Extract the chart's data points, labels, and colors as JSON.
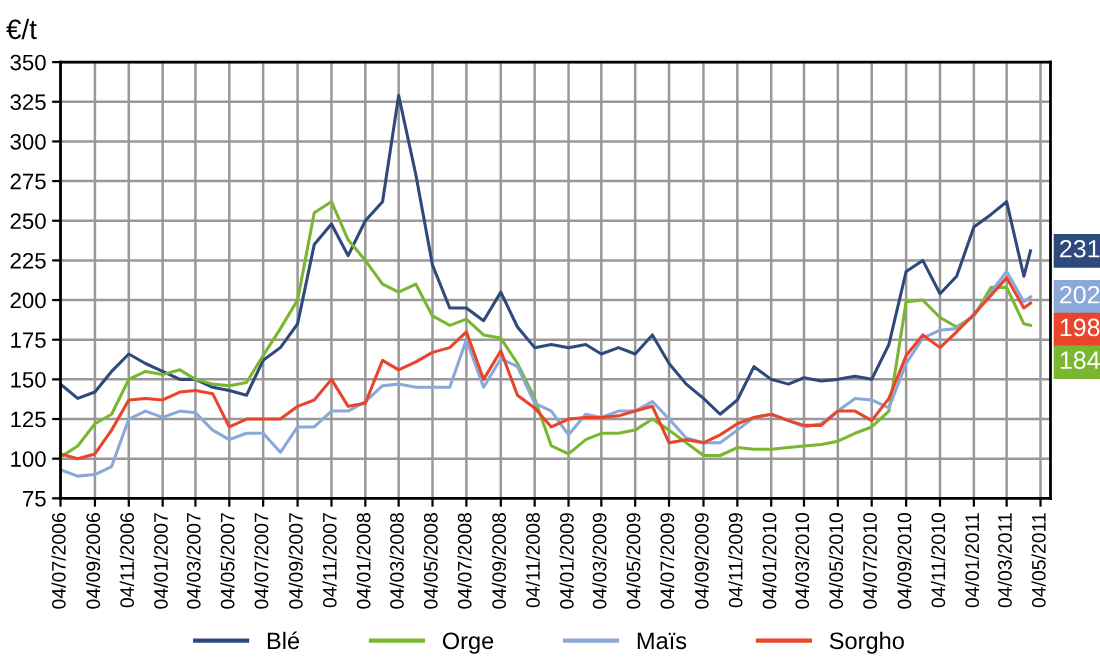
{
  "chart_data": {
    "type": "line",
    "ylabel": "€/t",
    "x": [
      "2006-07-04",
      "2006-08-04",
      "2006-09-04",
      "2006-10-04",
      "2006-11-04",
      "2006-12-04",
      "2007-01-04",
      "2007-02-04",
      "2007-03-04",
      "2007-04-04",
      "2007-05-04",
      "2007-06-04",
      "2007-07-04",
      "2007-08-04",
      "2007-09-04",
      "2007-10-04",
      "2007-11-04",
      "2007-12-04",
      "2008-01-04",
      "2008-02-04",
      "2008-03-04",
      "2008-04-04",
      "2008-05-04",
      "2008-06-04",
      "2008-07-04",
      "2008-08-04",
      "2008-09-04",
      "2008-10-04",
      "2008-11-04",
      "2008-12-04",
      "2009-01-04",
      "2009-02-04",
      "2009-03-04",
      "2009-04-04",
      "2009-05-04",
      "2009-06-04",
      "2009-07-04",
      "2009-08-04",
      "2009-09-04",
      "2009-10-04",
      "2009-11-04",
      "2009-12-04",
      "2010-01-04",
      "2010-02-04",
      "2010-03-04",
      "2010-04-04",
      "2010-05-04",
      "2010-06-04",
      "2010-07-04",
      "2010-08-04",
      "2010-09-04",
      "2010-10-04",
      "2010-11-04",
      "2010-12-04",
      "2011-01-04",
      "2011-02-04",
      "2011-03-04",
      "2011-04-04",
      "2011-04-16"
    ],
    "series": [
      {
        "name": "Blé",
        "color": "#2e4a7d",
        "values": [
          147,
          138,
          142,
          155,
          166,
          160,
          155,
          150,
          150,
          145,
          143,
          140,
          162,
          170,
          185,
          235,
          248,
          228,
          250,
          262,
          329,
          279,
          222,
          195,
          195,
          187,
          205,
          183,
          170,
          172,
          170,
          172,
          166,
          170,
          166,
          178,
          160,
          147,
          138,
          128,
          137,
          158,
          150,
          147,
          151,
          149,
          150,
          152,
          150,
          172,
          218,
          225,
          204,
          215,
          246,
          254,
          262,
          215,
          231
        ],
        "value_labels": [
          null,
          null,
          null,
          null,
          null,
          null,
          null,
          null,
          null,
          null,
          null,
          null,
          null,
          null,
          null,
          null,
          null,
          null,
          null,
          null,
          null,
          null,
          null,
          null,
          null,
          null,
          null,
          null,
          null,
          null,
          null,
          null,
          null,
          null,
          null,
          null,
          null,
          null,
          null,
          null,
          null,
          null,
          null,
          null,
          null,
          null,
          null,
          null,
          null,
          null,
          null,
          null,
          null,
          null,
          null,
          null,
          null,
          null,
          "231"
        ]
      },
      {
        "name": "Orge",
        "color": "#7ab630",
        "values": [
          101,
          108,
          122,
          128,
          150,
          155,
          153,
          156,
          150,
          147,
          146,
          148,
          165,
          182,
          200,
          255,
          262,
          238,
          225,
          210,
          205,
          210,
          190,
          184,
          188,
          178,
          176,
          160,
          138,
          108,
          103,
          112,
          116,
          116,
          118,
          125,
          118,
          110,
          102,
          102,
          107,
          106,
          106,
          107,
          108,
          109,
          111,
          116,
          120,
          130,
          199,
          200,
          189,
          183,
          190,
          208,
          208,
          185,
          184
        ],
        "value_labels": [
          null,
          null,
          null,
          null,
          null,
          null,
          null,
          null,
          null,
          null,
          null,
          null,
          null,
          null,
          null,
          null,
          null,
          null,
          null,
          null,
          null,
          null,
          null,
          null,
          null,
          null,
          null,
          null,
          null,
          null,
          null,
          null,
          null,
          null,
          null,
          null,
          null,
          null,
          null,
          null,
          null,
          null,
          null,
          null,
          null,
          null,
          null,
          null,
          null,
          null,
          null,
          null,
          null,
          null,
          null,
          null,
          null,
          null,
          "184"
        ]
      },
      {
        "name": "Maïs",
        "color": "#8aa8d8",
        "values": [
          93,
          89,
          90,
          95,
          125,
          130,
          126,
          130,
          129,
          118,
          112,
          116,
          116,
          104,
          120,
          120,
          130,
          130,
          136,
          146,
          147,
          145,
          145,
          145,
          175,
          145,
          163,
          158,
          135,
          130,
          115,
          128,
          126,
          130,
          130,
          136,
          125,
          113,
          110,
          110,
          118,
          126,
          128,
          124,
          120,
          122,
          130,
          138,
          137,
          132,
          160,
          176,
          181,
          182,
          190,
          205,
          218,
          199,
          202
        ],
        "value_labels": [
          null,
          null,
          null,
          null,
          null,
          null,
          null,
          null,
          null,
          null,
          null,
          null,
          null,
          null,
          null,
          null,
          null,
          null,
          null,
          null,
          null,
          null,
          null,
          null,
          null,
          null,
          null,
          null,
          null,
          null,
          null,
          null,
          null,
          null,
          null,
          null,
          null,
          null,
          null,
          null,
          null,
          null,
          null,
          null,
          null,
          null,
          null,
          null,
          null,
          null,
          null,
          null,
          null,
          null,
          null,
          null,
          null,
          null,
          "202"
        ]
      },
      {
        "name": "Sorgho",
        "color": "#e8452c",
        "values": [
          103,
          100,
          103,
          118,
          137,
          138,
          137,
          142,
          143,
          141,
          120,
          125,
          125,
          125,
          133,
          137,
          150,
          133,
          135,
          162,
          156,
          161,
          167,
          170,
          180,
          150,
          168,
          140,
          132,
          120,
          125,
          126,
          126,
          127,
          130,
          133,
          110,
          112,
          110,
          115,
          122,
          126,
          128,
          124,
          121,
          121,
          130,
          130,
          124,
          138,
          165,
          178,
          170,
          180,
          191,
          203,
          214,
          195,
          198
        ],
        "value_labels": [
          null,
          null,
          null,
          null,
          null,
          null,
          null,
          null,
          null,
          null,
          null,
          null,
          null,
          null,
          null,
          null,
          null,
          null,
          null,
          null,
          null,
          null,
          null,
          null,
          null,
          null,
          null,
          null,
          null,
          null,
          null,
          null,
          null,
          null,
          null,
          null,
          null,
          null,
          null,
          null,
          null,
          null,
          null,
          null,
          null,
          null,
          null,
          null,
          null,
          null,
          null,
          null,
          null,
          null,
          null,
          null,
          null,
          null,
          "198"
        ]
      }
    ],
    "xlim": [
      "2006-07-04",
      "2011-05-22"
    ],
    "xticks": [
      {
        "value": "2006-07-04",
        "label": "04/07/2006"
      },
      {
        "value": "2006-09-04",
        "label": "04/09/2006"
      },
      {
        "value": "2006-11-04",
        "label": "04/11/2006"
      },
      {
        "value": "2007-01-04",
        "label": "04/01/2007"
      },
      {
        "value": "2007-03-04",
        "label": "04/03/2007"
      },
      {
        "value": "2007-05-04",
        "label": "04/05/2007"
      },
      {
        "value": "2007-07-04",
        "label": "04/07/2007"
      },
      {
        "value": "2007-09-04",
        "label": "04/09/2007"
      },
      {
        "value": "2007-11-04",
        "label": "04/11/2007"
      },
      {
        "value": "2008-01-04",
        "label": "04/01/2008"
      },
      {
        "value": "2008-03-04",
        "label": "04/03/2008"
      },
      {
        "value": "2008-05-04",
        "label": "04/05/2008"
      },
      {
        "value": "2008-07-04",
        "label": "04/07/2008"
      },
      {
        "value": "2008-09-04",
        "label": "04/09/2008"
      },
      {
        "value": "2008-11-04",
        "label": "04/11/2008"
      },
      {
        "value": "2009-01-04",
        "label": "04/01/2009"
      },
      {
        "value": "2009-03-04",
        "label": "04/03/2009"
      },
      {
        "value": "2009-05-04",
        "label": "04/05/2009"
      },
      {
        "value": "2009-07-04",
        "label": "04/07/2009"
      },
      {
        "value": "2009-09-04",
        "label": "04/09/2009"
      },
      {
        "value": "2009-11-04",
        "label": "04/11/2009"
      },
      {
        "value": "2010-01-04",
        "label": "04/01/2010"
      },
      {
        "value": "2010-03-04",
        "label": "04/03/2010"
      },
      {
        "value": "2010-05-04",
        "label": "04/05/2010"
      },
      {
        "value": "2010-07-04",
        "label": "04/07/2010"
      },
      {
        "value": "2010-09-04",
        "label": "04/09/2010"
      },
      {
        "value": "2010-11-04",
        "label": "04/11/2010"
      },
      {
        "value": "2011-01-04",
        "label": "04/01/2011"
      },
      {
        "value": "2011-03-04",
        "label": "04/03/2011"
      },
      {
        "value": "2011-05-04",
        "label": "04/05/2011"
      }
    ],
    "ylim": [
      75,
      350
    ],
    "yticks": [
      75,
      100,
      125,
      150,
      175,
      200,
      225,
      250,
      275,
      300,
      325,
      350
    ],
    "grid": true,
    "legend": "bottom"
  }
}
